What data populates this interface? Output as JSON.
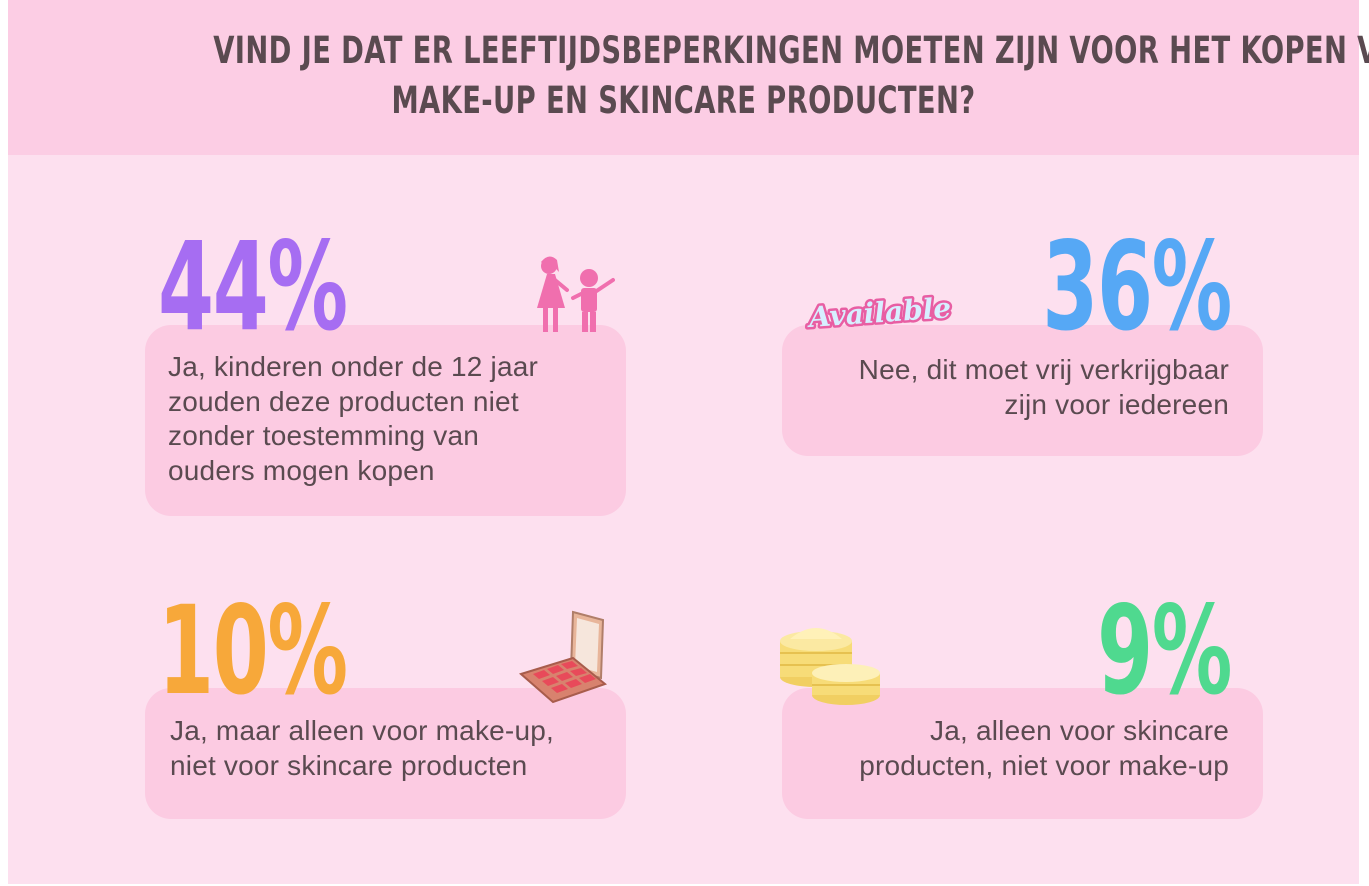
{
  "title": {
    "line1": "VIND JE DAT ER LEEFTIJDSBEPERKINGEN MOETEN ZIJN VOOR HET KOPEN VAN",
    "line2": "MAKE-UP EN SKINCARE PRODUCTEN?"
  },
  "items": [
    {
      "percent": "44%",
      "color": "#a66df2",
      "lines": [
        "Ja, kinderen onder de 12 jaar",
        "zouden deze producten niet",
        "zonder toestemming van",
        "ouders mogen kopen"
      ],
      "icon": "parent-child-icon"
    },
    {
      "percent": "36%",
      "color": "#56a8f5",
      "lines": [
        "Nee, dit moet vrij verkrijgbaar",
        "zijn voor iedereen"
      ],
      "icon": "available-sticker",
      "sticker_text": "Available"
    },
    {
      "percent": "10%",
      "color": "#f7a83a",
      "lines": [
        "Ja, maar alleen voor make-up,",
        "niet voor skincare producten"
      ],
      "icon": "makeup-palette-icon"
    },
    {
      "percent": "9%",
      "color": "#4fd98f",
      "lines": [
        "Ja, alleen voor skincare",
        "producten, niet voor make-up"
      ],
      "icon": "cream-jars-icon"
    }
  ]
}
